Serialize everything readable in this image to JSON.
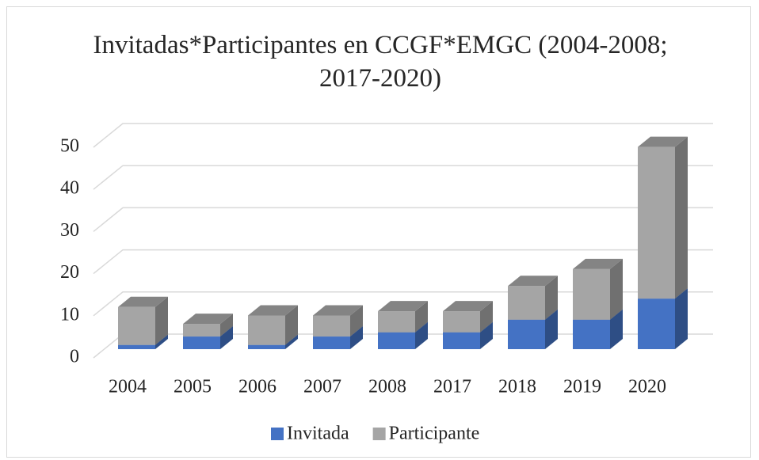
{
  "chart_data": {
    "type": "bar3d_stacked",
    "title": "Invitadas*Participantes en CCGF*EMGC (2004-2008; 2017-2020)",
    "categories": [
      "2004",
      "2005",
      "2006",
      "2007",
      "2008",
      "2017",
      "2018",
      "2019",
      "2020"
    ],
    "series": [
      {
        "name": "Invitada",
        "color": "#4472c4",
        "values": [
          1,
          3,
          1,
          3,
          4,
          4,
          7,
          7,
          12
        ]
      },
      {
        "name": "Participante",
        "color": "#a5a5a5",
        "values": [
          9,
          3,
          7,
          5,
          5,
          5,
          8,
          12,
          36
        ]
      }
    ],
    "ylim": [
      0,
      50
    ],
    "yticks": [
      0,
      10,
      20,
      30,
      40,
      50
    ],
    "grid": true,
    "legend": "bottom"
  }
}
